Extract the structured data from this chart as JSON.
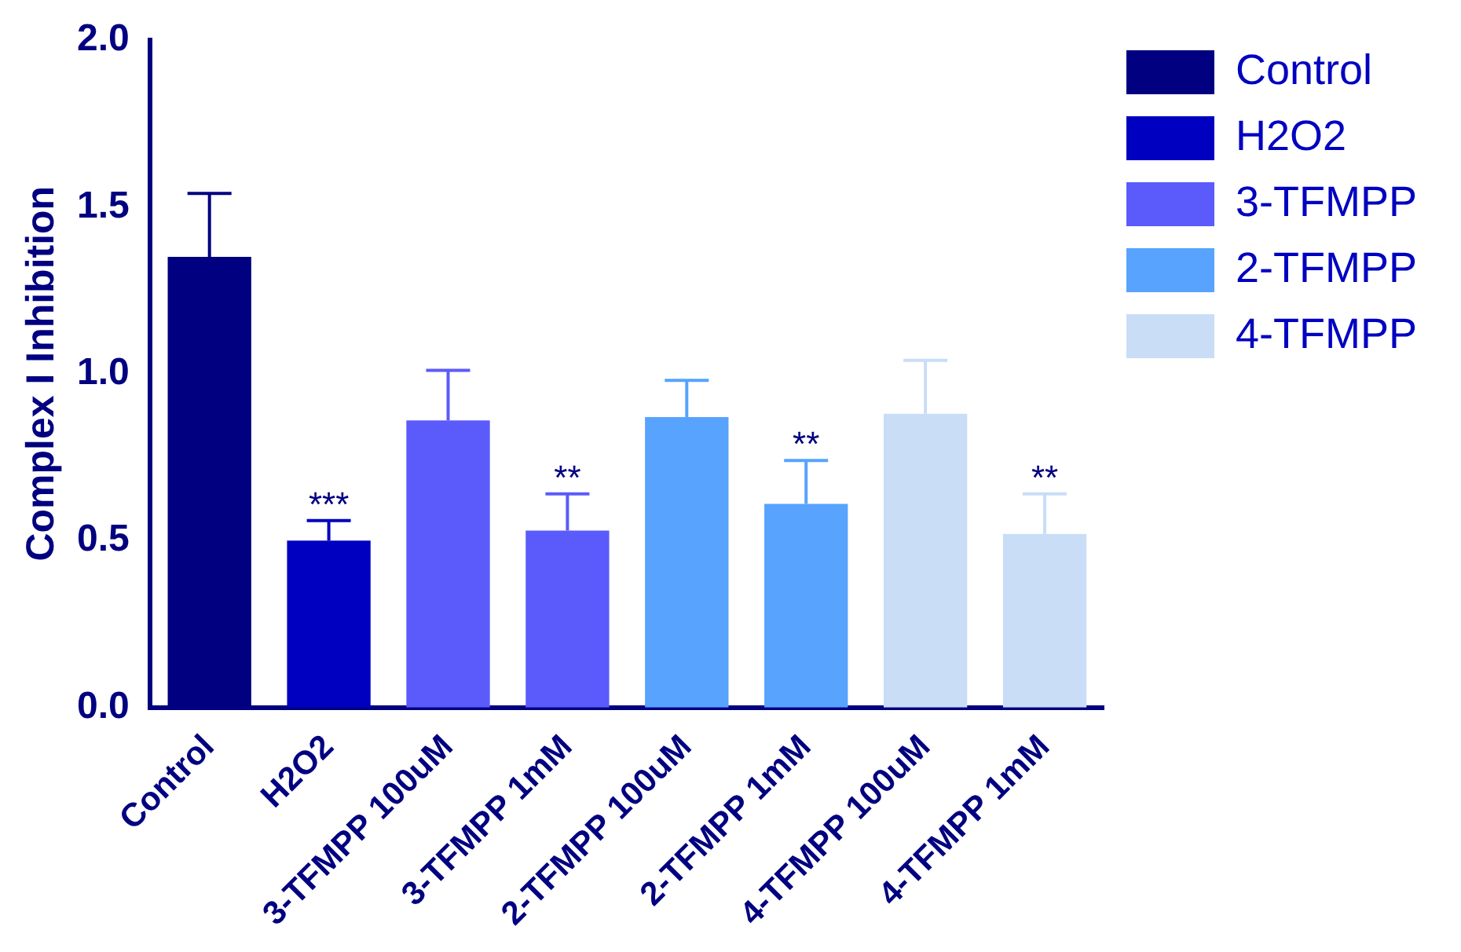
{
  "chart_data": {
    "type": "bar",
    "ylabel": "Complex I Inhibition",
    "categories": [
      "Control",
      "H2O2",
      "3-TFMPP 100uM",
      "3-TFMPP 1mM",
      "2-TFMPP 100uM",
      "2-TFMPP 1mM",
      "4-TFMPP 100uM",
      "4-TFMPP 1mM"
    ],
    "series": [
      {
        "name": "Control",
        "color": "#000080",
        "values": [
          1.35,
          null,
          null,
          null,
          null,
          null,
          null,
          null
        ],
        "errors": [
          [
            1.35,
            1.54
          ],
          null,
          null,
          null,
          null,
          null,
          null,
          null
        ]
      },
      {
        "name": "H2O2",
        "color": "#0000c0",
        "values": [
          null,
          0.5,
          null,
          null,
          null,
          null,
          null,
          null
        ],
        "errors": [
          null,
          [
            0.5,
            0.56
          ],
          null,
          null,
          null,
          null,
          null,
          null
        ]
      },
      {
        "name": "3-TFMPP",
        "color": "#5b5bfb",
        "values": [
          null,
          null,
          0.86,
          0.53,
          null,
          null,
          null,
          null
        ],
        "errors": [
          null,
          null,
          [
            0.86,
            1.01
          ],
          [
            0.53,
            0.64
          ],
          null,
          null,
          null,
          null
        ]
      },
      {
        "name": "2-TFMPP",
        "color": "#57a3fd",
        "values": [
          null,
          null,
          null,
          null,
          0.87,
          0.61,
          null,
          null
        ],
        "errors": [
          null,
          null,
          null,
          null,
          [
            0.87,
            0.98
          ],
          [
            0.61,
            0.74
          ],
          null,
          null
        ]
      },
      {
        "name": "4-TFMPP",
        "color": "#c9ddf6",
        "values": [
          null,
          null,
          null,
          null,
          null,
          null,
          0.88,
          0.52
        ],
        "errors": [
          null,
          null,
          null,
          null,
          null,
          null,
          [
            0.88,
            1.04
          ],
          [
            0.52,
            0.64
          ]
        ]
      }
    ],
    "annotations": [
      {
        "text": "***",
        "x": "H2O2",
        "y": 0.56
      },
      {
        "text": "**",
        "x": "3-TFMPP 1mM",
        "y": 0.64
      },
      {
        "text": "**",
        "x": "2-TFMPP 1mM",
        "y": 0.74
      },
      {
        "text": "**",
        "x": "4-TFMPP 1mM",
        "y": 0.64
      }
    ],
    "ylim": [
      0,
      2
    ],
    "yticks": [
      {
        "value": 0,
        "label": "0.0"
      },
      {
        "value": 0.5,
        "label": "0.5"
      },
      {
        "value": 1,
        "label": "1.0"
      },
      {
        "value": 1.5,
        "label": "1.5"
      },
      {
        "value": 2,
        "label": "2.0"
      }
    ],
    "legend": "right",
    "grid": false
  }
}
